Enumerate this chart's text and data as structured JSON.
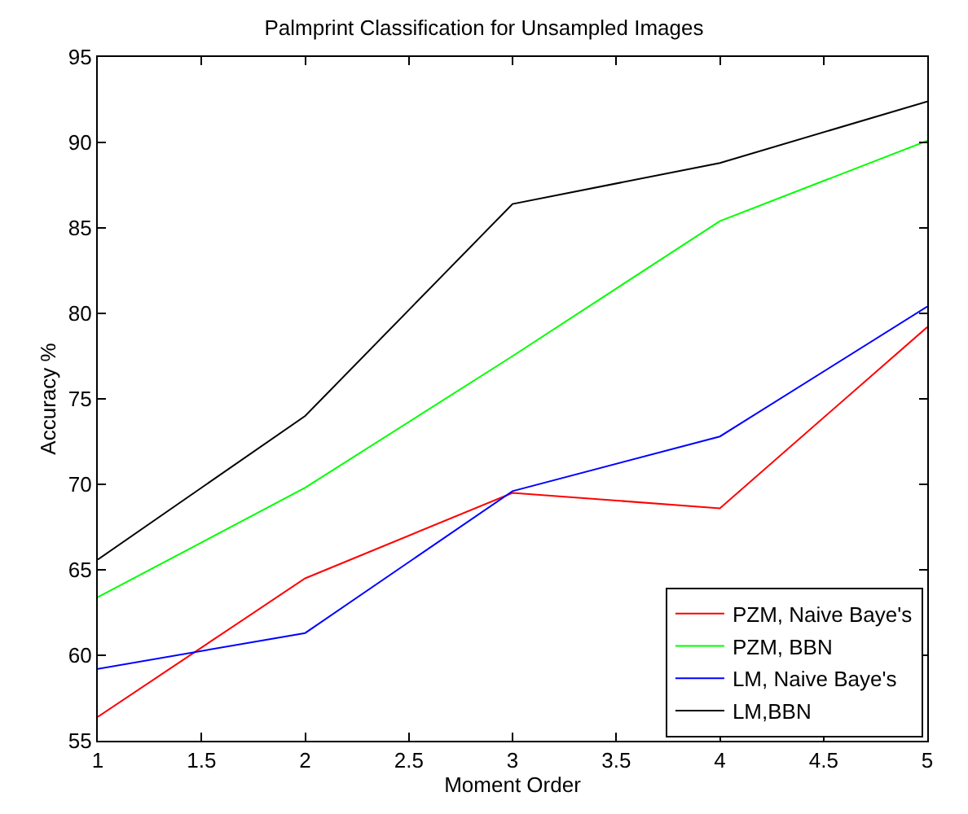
{
  "chart_data": {
    "type": "line",
    "title": "Palmprint Classification for Unsampled Images",
    "xlabel": "Moment Order",
    "ylabel": "Accuracy %",
    "x": [
      1,
      2,
      3,
      4,
      5
    ],
    "series": [
      {
        "name": "PZM, Naive Baye's",
        "color": "#ff0000",
        "values": [
          56.4,
          64.5,
          69.5,
          68.6,
          79.2
        ]
      },
      {
        "name": "PZM, BBN",
        "color": "#00ff00",
        "values": [
          63.4,
          69.8,
          77.5,
          85.4,
          90.1
        ]
      },
      {
        "name": "LM, Naive Baye's",
        "color": "#0000ff",
        "values": [
          59.2,
          61.3,
          69.6,
          72.8,
          80.4
        ]
      },
      {
        "name": "LM,BBN",
        "color": "#000000",
        "values": [
          65.6,
          74.0,
          86.4,
          88.8,
          92.4
        ]
      }
    ],
    "xlim": [
      1,
      5
    ],
    "xticks": [
      1,
      1.5,
      2,
      2.5,
      3,
      3.5,
      4,
      4.5,
      5
    ],
    "ylim": [
      55,
      95
    ],
    "yticks": [
      55,
      60,
      65,
      70,
      75,
      80,
      85,
      90,
      95
    ],
    "legend": "bottom right",
    "marker": "none",
    "line_style": "solid"
  }
}
